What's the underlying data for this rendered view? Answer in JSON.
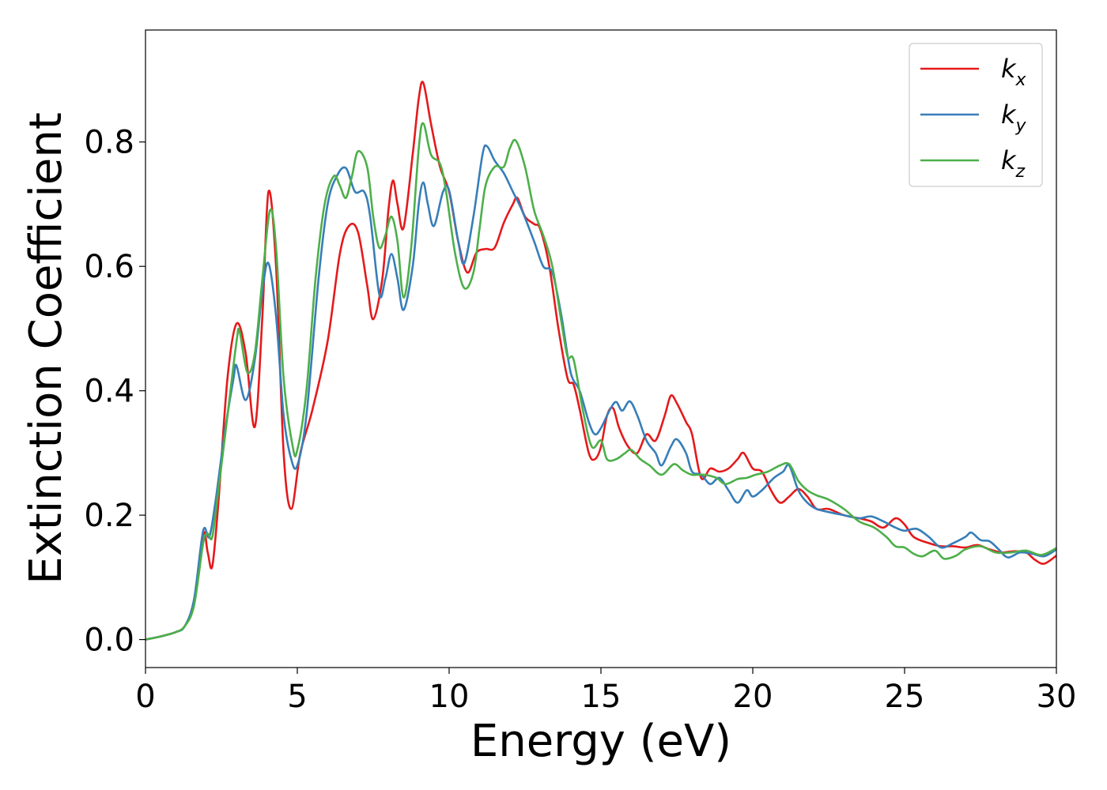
{
  "chart_data": {
    "type": "line",
    "xlabel": "Energy (eV)",
    "ylabel": "Extinction Coefficient",
    "xlim": [
      0,
      30
    ],
    "ylim": [
      -0.045,
      0.98
    ],
    "xticks": [
      0,
      5,
      10,
      15,
      20,
      25,
      30
    ],
    "yticks": [
      0.0,
      0.2,
      0.4,
      0.6,
      0.8
    ],
    "xtick_labels": [
      "0",
      "5",
      "10",
      "15",
      "20",
      "25",
      "30"
    ],
    "ytick_labels": [
      "0.0",
      "0.2",
      "0.4",
      "0.6",
      "0.8"
    ],
    "grid": false,
    "legend_position": "top-right",
    "series": [
      {
        "name": "k",
        "subscript": "x",
        "color": "#e41a1c",
        "points": [
          [
            0,
            0
          ],
          [
            0.5,
            0.005
          ],
          [
            1.0,
            0.012
          ],
          [
            1.3,
            0.022
          ],
          [
            1.6,
            0.06
          ],
          [
            1.9,
            0.17
          ],
          [
            2.05,
            0.14
          ],
          [
            2.2,
            0.118
          ],
          [
            2.4,
            0.22
          ],
          [
            2.7,
            0.42
          ],
          [
            3.0,
            0.508
          ],
          [
            3.3,
            0.46
          ],
          [
            3.6,
            0.342
          ],
          [
            3.85,
            0.52
          ],
          [
            4.05,
            0.72
          ],
          [
            4.3,
            0.6
          ],
          [
            4.55,
            0.3
          ],
          [
            4.8,
            0.21
          ],
          [
            5.1,
            0.3
          ],
          [
            5.5,
            0.37
          ],
          [
            6.0,
            0.48
          ],
          [
            6.4,
            0.62
          ],
          [
            6.7,
            0.665
          ],
          [
            7.0,
            0.655
          ],
          [
            7.3,
            0.57
          ],
          [
            7.5,
            0.515
          ],
          [
            7.8,
            0.58
          ],
          [
            8.0,
            0.69
          ],
          [
            8.15,
            0.738
          ],
          [
            8.3,
            0.7
          ],
          [
            8.5,
            0.662
          ],
          [
            8.8,
            0.78
          ],
          [
            9.0,
            0.87
          ],
          [
            9.15,
            0.895
          ],
          [
            9.4,
            0.83
          ],
          [
            9.7,
            0.76
          ],
          [
            10.0,
            0.72
          ],
          [
            10.3,
            0.64
          ],
          [
            10.6,
            0.59
          ],
          [
            10.9,
            0.622
          ],
          [
            11.2,
            0.628
          ],
          [
            11.5,
            0.63
          ],
          [
            11.8,
            0.67
          ],
          [
            12.1,
            0.7
          ],
          [
            12.25,
            0.71
          ],
          [
            12.5,
            0.68
          ],
          [
            12.8,
            0.668
          ],
          [
            13.0,
            0.66
          ],
          [
            13.3,
            0.6
          ],
          [
            13.6,
            0.5
          ],
          [
            13.9,
            0.42
          ],
          [
            14.1,
            0.41
          ],
          [
            14.3,
            0.37
          ],
          [
            14.6,
            0.3
          ],
          [
            14.8,
            0.29
          ],
          [
            15.0,
            0.31
          ],
          [
            15.2,
            0.36
          ],
          [
            15.4,
            0.372
          ],
          [
            15.6,
            0.34
          ],
          [
            15.9,
            0.31
          ],
          [
            16.2,
            0.3
          ],
          [
            16.5,
            0.33
          ],
          [
            16.8,
            0.32
          ],
          [
            17.1,
            0.36
          ],
          [
            17.3,
            0.392
          ],
          [
            17.5,
            0.38
          ],
          [
            17.8,
            0.35
          ],
          [
            18.0,
            0.33
          ],
          [
            18.3,
            0.26
          ],
          [
            18.6,
            0.275
          ],
          [
            18.9,
            0.27
          ],
          [
            19.2,
            0.275
          ],
          [
            19.5,
            0.29
          ],
          [
            19.7,
            0.3
          ],
          [
            20.0,
            0.275
          ],
          [
            20.3,
            0.27
          ],
          [
            20.6,
            0.24
          ],
          [
            20.9,
            0.22
          ],
          [
            21.2,
            0.23
          ],
          [
            21.5,
            0.242
          ],
          [
            21.8,
            0.23
          ],
          [
            22.1,
            0.21
          ],
          [
            22.5,
            0.21
          ],
          [
            23.0,
            0.2
          ],
          [
            23.5,
            0.195
          ],
          [
            23.9,
            0.19
          ],
          [
            24.3,
            0.18
          ],
          [
            24.7,
            0.195
          ],
          [
            25.0,
            0.185
          ],
          [
            25.3,
            0.165
          ],
          [
            25.8,
            0.155
          ],
          [
            26.2,
            0.15
          ],
          [
            26.6,
            0.15
          ],
          [
            27.0,
            0.148
          ],
          [
            27.4,
            0.152
          ],
          [
            27.8,
            0.145
          ],
          [
            28.2,
            0.14
          ],
          [
            28.6,
            0.142
          ],
          [
            29.0,
            0.14
          ],
          [
            29.3,
            0.128
          ],
          [
            29.6,
            0.122
          ],
          [
            30.0,
            0.135
          ]
        ]
      },
      {
        "name": "k",
        "subscript": "y",
        "color": "#377eb8",
        "points": [
          [
            0,
            0
          ],
          [
            0.5,
            0.005
          ],
          [
            1.0,
            0.012
          ],
          [
            1.3,
            0.022
          ],
          [
            1.6,
            0.065
          ],
          [
            1.9,
            0.175
          ],
          [
            2.1,
            0.165
          ],
          [
            2.3,
            0.22
          ],
          [
            2.6,
            0.33
          ],
          [
            2.9,
            0.42
          ],
          [
            3.0,
            0.44
          ],
          [
            3.3,
            0.385
          ],
          [
            3.6,
            0.45
          ],
          [
            3.85,
            0.56
          ],
          [
            4.05,
            0.605
          ],
          [
            4.3,
            0.52
          ],
          [
            4.55,
            0.36
          ],
          [
            4.8,
            0.29
          ],
          [
            5.0,
            0.28
          ],
          [
            5.3,
            0.36
          ],
          [
            5.7,
            0.58
          ],
          [
            6.0,
            0.7
          ],
          [
            6.3,
            0.745
          ],
          [
            6.6,
            0.758
          ],
          [
            6.9,
            0.72
          ],
          [
            7.2,
            0.72
          ],
          [
            7.4,
            0.68
          ],
          [
            7.7,
            0.555
          ],
          [
            7.9,
            0.58
          ],
          [
            8.1,
            0.62
          ],
          [
            8.3,
            0.58
          ],
          [
            8.5,
            0.53
          ],
          [
            8.8,
            0.6
          ],
          [
            9.0,
            0.7
          ],
          [
            9.15,
            0.735
          ],
          [
            9.3,
            0.7
          ],
          [
            9.5,
            0.665
          ],
          [
            9.8,
            0.72
          ],
          [
            10.0,
            0.722
          ],
          [
            10.3,
            0.64
          ],
          [
            10.5,
            0.605
          ],
          [
            10.8,
            0.68
          ],
          [
            11.1,
            0.78
          ],
          [
            11.25,
            0.793
          ],
          [
            11.5,
            0.77
          ],
          [
            11.8,
            0.75
          ],
          [
            12.1,
            0.72
          ],
          [
            12.4,
            0.69
          ],
          [
            12.8,
            0.64
          ],
          [
            13.1,
            0.6
          ],
          [
            13.4,
            0.59
          ],
          [
            13.7,
            0.52
          ],
          [
            14.0,
            0.43
          ],
          [
            14.3,
            0.4
          ],
          [
            14.6,
            0.35
          ],
          [
            14.8,
            0.33
          ],
          [
            15.0,
            0.34
          ],
          [
            15.3,
            0.37
          ],
          [
            15.5,
            0.382
          ],
          [
            15.7,
            0.368
          ],
          [
            15.95,
            0.383
          ],
          [
            16.2,
            0.36
          ],
          [
            16.5,
            0.32
          ],
          [
            16.8,
            0.3
          ],
          [
            17.0,
            0.28
          ],
          [
            17.3,
            0.31
          ],
          [
            17.5,
            0.322
          ],
          [
            17.8,
            0.3
          ],
          [
            18.0,
            0.27
          ],
          [
            18.3,
            0.265
          ],
          [
            18.6,
            0.25
          ],
          [
            18.9,
            0.26
          ],
          [
            19.2,
            0.24
          ],
          [
            19.5,
            0.22
          ],
          [
            19.8,
            0.24
          ],
          [
            20.0,
            0.23
          ],
          [
            20.3,
            0.24
          ],
          [
            20.7,
            0.26
          ],
          [
            21.0,
            0.27
          ],
          [
            21.2,
            0.28
          ],
          [
            21.5,
            0.24
          ],
          [
            21.8,
            0.22
          ],
          [
            22.1,
            0.21
          ],
          [
            22.5,
            0.205
          ],
          [
            23.0,
            0.2
          ],
          [
            23.5,
            0.195
          ],
          [
            23.9,
            0.198
          ],
          [
            24.3,
            0.19
          ],
          [
            24.7,
            0.18
          ],
          [
            25.0,
            0.175
          ],
          [
            25.4,
            0.178
          ],
          [
            25.8,
            0.165
          ],
          [
            26.2,
            0.148
          ],
          [
            26.6,
            0.155
          ],
          [
            27.0,
            0.165
          ],
          [
            27.2,
            0.172
          ],
          [
            27.5,
            0.16
          ],
          [
            27.8,
            0.158
          ],
          [
            28.1,
            0.145
          ],
          [
            28.4,
            0.132
          ],
          [
            28.8,
            0.14
          ],
          [
            29.2,
            0.138
          ],
          [
            29.6,
            0.134
          ],
          [
            30.0,
            0.145
          ]
        ]
      },
      {
        "name": "k",
        "subscript": "z",
        "color": "#4daf4a",
        "points": [
          [
            0,
            0
          ],
          [
            0.5,
            0.005
          ],
          [
            1.0,
            0.012
          ],
          [
            1.3,
            0.022
          ],
          [
            1.6,
            0.055
          ],
          [
            1.9,
            0.155
          ],
          [
            2.05,
            0.17
          ],
          [
            2.2,
            0.165
          ],
          [
            2.4,
            0.24
          ],
          [
            2.7,
            0.36
          ],
          [
            3.0,
            0.48
          ],
          [
            3.1,
            0.495
          ],
          [
            3.35,
            0.43
          ],
          [
            3.6,
            0.46
          ],
          [
            3.85,
            0.58
          ],
          [
            4.1,
            0.69
          ],
          [
            4.3,
            0.63
          ],
          [
            4.55,
            0.42
          ],
          [
            4.85,
            0.31
          ],
          [
            5.0,
            0.305
          ],
          [
            5.3,
            0.4
          ],
          [
            5.6,
            0.58
          ],
          [
            5.9,
            0.7
          ],
          [
            6.2,
            0.745
          ],
          [
            6.4,
            0.73
          ],
          [
            6.6,
            0.71
          ],
          [
            6.8,
            0.745
          ],
          [
            7.0,
            0.785
          ],
          [
            7.3,
            0.76
          ],
          [
            7.5,
            0.68
          ],
          [
            7.7,
            0.63
          ],
          [
            7.9,
            0.65
          ],
          [
            8.1,
            0.68
          ],
          [
            8.3,
            0.64
          ],
          [
            8.5,
            0.55
          ],
          [
            8.75,
            0.63
          ],
          [
            9.0,
            0.79
          ],
          [
            9.15,
            0.83
          ],
          [
            9.4,
            0.78
          ],
          [
            9.7,
            0.765
          ],
          [
            9.9,
            0.72
          ],
          [
            10.2,
            0.62
          ],
          [
            10.5,
            0.565
          ],
          [
            10.8,
            0.59
          ],
          [
            11.0,
            0.66
          ],
          [
            11.2,
            0.73
          ],
          [
            11.5,
            0.76
          ],
          [
            11.8,
            0.76
          ],
          [
            12.0,
            0.79
          ],
          [
            12.2,
            0.802
          ],
          [
            12.5,
            0.76
          ],
          [
            12.8,
            0.69
          ],
          [
            13.1,
            0.65
          ],
          [
            13.4,
            0.6
          ],
          [
            13.7,
            0.51
          ],
          [
            13.9,
            0.455
          ],
          [
            14.1,
            0.45
          ],
          [
            14.4,
            0.37
          ],
          [
            14.7,
            0.31
          ],
          [
            15.0,
            0.32
          ],
          [
            15.2,
            0.29
          ],
          [
            15.5,
            0.29
          ],
          [
            15.8,
            0.3
          ],
          [
            16.0,
            0.305
          ],
          [
            16.3,
            0.29
          ],
          [
            16.6,
            0.28
          ],
          [
            17.0,
            0.265
          ],
          [
            17.4,
            0.282
          ],
          [
            17.7,
            0.272
          ],
          [
            18.0,
            0.265
          ],
          [
            18.4,
            0.265
          ],
          [
            18.8,
            0.26
          ],
          [
            19.1,
            0.25
          ],
          [
            19.5,
            0.258
          ],
          [
            19.8,
            0.26
          ],
          [
            20.1,
            0.265
          ],
          [
            20.5,
            0.27
          ],
          [
            20.9,
            0.28
          ],
          [
            21.2,
            0.282
          ],
          [
            21.5,
            0.255
          ],
          [
            21.8,
            0.24
          ],
          [
            22.1,
            0.232
          ],
          [
            22.5,
            0.225
          ],
          [
            23.0,
            0.21
          ],
          [
            23.5,
            0.19
          ],
          [
            24.0,
            0.18
          ],
          [
            24.4,
            0.165
          ],
          [
            24.7,
            0.15
          ],
          [
            25.0,
            0.148
          ],
          [
            25.3,
            0.138
          ],
          [
            25.6,
            0.134
          ],
          [
            26.0,
            0.143
          ],
          [
            26.3,
            0.13
          ],
          [
            26.7,
            0.135
          ],
          [
            27.0,
            0.145
          ],
          [
            27.5,
            0.15
          ],
          [
            28.0,
            0.14
          ],
          [
            28.5,
            0.14
          ],
          [
            29.0,
            0.143
          ],
          [
            29.5,
            0.136
          ],
          [
            30.0,
            0.147
          ]
        ]
      }
    ]
  }
}
